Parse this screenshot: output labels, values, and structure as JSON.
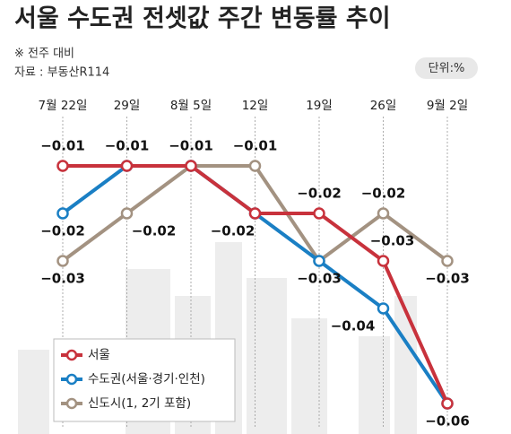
{
  "chart_data": {
    "type": "line",
    "title": "서울 수도권 전셋값 주간 변동률 추이",
    "note": "※ 전주 대비",
    "source": "자료 : 부동산R114",
    "unit": "단위:%",
    "categories": [
      "7월 22일",
      "29일",
      "8월 5일",
      "12일",
      "19일",
      "26일",
      "9월 2일"
    ],
    "ylim": [
      -0.065,
      -0.005
    ],
    "series": [
      {
        "name": "서울",
        "color": "#c8323c",
        "values": [
          -0.01,
          -0.01,
          -0.01,
          -0.02,
          -0.02,
          -0.03,
          -0.06
        ],
        "value_labels": [
          "−0.01",
          "−0.01",
          "−0.01",
          "−0.02",
          "−0.02",
          "−0.03",
          "−0.06"
        ]
      },
      {
        "name": "수도권(서울·경기·인천)",
        "color": "#1a7fc4",
        "values": [
          -0.02,
          -0.01,
          -0.01,
          -0.02,
          -0.03,
          -0.04,
          -0.06
        ],
        "value_labels": [
          "−0.02",
          null,
          null,
          null,
          null,
          "−0.04",
          null
        ]
      },
      {
        "name": "신도시(1, 2기 포함)",
        "color": "#a39281",
        "values": [
          -0.03,
          -0.02,
          -0.01,
          -0.01,
          -0.03,
          -0.02,
          -0.03
        ],
        "value_labels": [
          "−0.03",
          "−0.02",
          null,
          "−0.01",
          "−0.03",
          "−0.02",
          "−0.03"
        ]
      }
    ]
  }
}
